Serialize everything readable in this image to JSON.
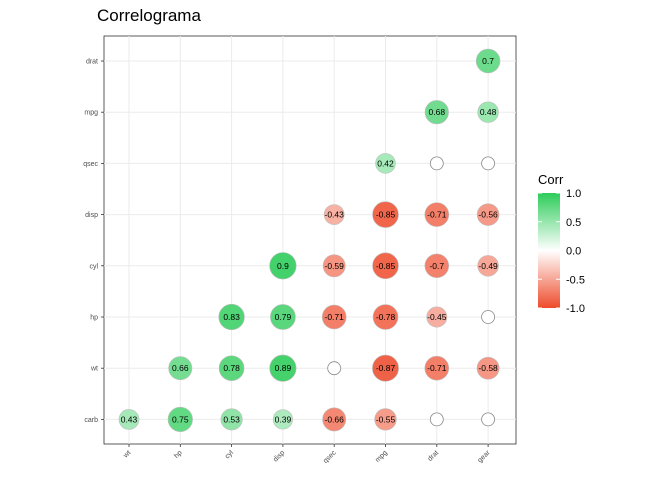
{
  "chart_data": {
    "type": "heatmap",
    "title": "Correlograma",
    "xlabel": "",
    "ylabel": "",
    "x_categories": [
      "wt",
      "hp",
      "cyl",
      "disp",
      "qsec",
      "mpg",
      "drat",
      "gear"
    ],
    "y_categories": [
      "carb",
      "wt",
      "hp",
      "cyl",
      "disp",
      "qsec",
      "mpg",
      "drat"
    ],
    "cells": [
      {
        "x": "gear",
        "y": "drat",
        "value": 0.7,
        "label": "0.7"
      },
      {
        "x": "drat",
        "y": "mpg",
        "value": 0.68,
        "label": "0.68"
      },
      {
        "x": "gear",
        "y": "mpg",
        "value": 0.48,
        "label": "0.48"
      },
      {
        "x": "mpg",
        "y": "qsec",
        "value": 0.42,
        "label": "0.42"
      },
      {
        "x": "drat",
        "y": "qsec",
        "value": null,
        "label": ""
      },
      {
        "x": "gear",
        "y": "qsec",
        "value": null,
        "label": ""
      },
      {
        "x": "qsec",
        "y": "disp",
        "value": -0.43,
        "label": "-0.43"
      },
      {
        "x": "mpg",
        "y": "disp",
        "value": -0.85,
        "label": "-0.85"
      },
      {
        "x": "drat",
        "y": "disp",
        "value": -0.71,
        "label": "-0.71"
      },
      {
        "x": "gear",
        "y": "disp",
        "value": -0.56,
        "label": "-0.56"
      },
      {
        "x": "disp",
        "y": "cyl",
        "value": 0.9,
        "label": "0.9"
      },
      {
        "x": "qsec",
        "y": "cyl",
        "value": -0.59,
        "label": "-0.59"
      },
      {
        "x": "mpg",
        "y": "cyl",
        "value": -0.85,
        "label": "-0.85"
      },
      {
        "x": "drat",
        "y": "cyl",
        "value": -0.7,
        "label": "-0.7"
      },
      {
        "x": "gear",
        "y": "cyl",
        "value": -0.49,
        "label": "-0.49"
      },
      {
        "x": "cyl",
        "y": "hp",
        "value": 0.83,
        "label": "0.83"
      },
      {
        "x": "disp",
        "y": "hp",
        "value": 0.79,
        "label": "0.79"
      },
      {
        "x": "qsec",
        "y": "hp",
        "value": -0.71,
        "label": "-0.71"
      },
      {
        "x": "mpg",
        "y": "hp",
        "value": -0.78,
        "label": "-0.78"
      },
      {
        "x": "drat",
        "y": "hp",
        "value": -0.45,
        "label": "-0.45"
      },
      {
        "x": "gear",
        "y": "hp",
        "value": null,
        "label": ""
      },
      {
        "x": "hp",
        "y": "wt",
        "value": 0.66,
        "label": "0.66"
      },
      {
        "x": "cyl",
        "y": "wt",
        "value": 0.78,
        "label": "0.78"
      },
      {
        "x": "disp",
        "y": "wt",
        "value": 0.89,
        "label": "0.89"
      },
      {
        "x": "qsec",
        "y": "wt",
        "value": null,
        "label": ""
      },
      {
        "x": "mpg",
        "y": "wt",
        "value": -0.87,
        "label": "-0.87"
      },
      {
        "x": "drat",
        "y": "wt",
        "value": -0.71,
        "label": "-0.71"
      },
      {
        "x": "gear",
        "y": "wt",
        "value": -0.58,
        "label": "-0.58"
      },
      {
        "x": "wt",
        "y": "carb",
        "value": 0.43,
        "label": "0.43"
      },
      {
        "x": "hp",
        "y": "carb",
        "value": 0.75,
        "label": "0.75"
      },
      {
        "x": "cyl",
        "y": "carb",
        "value": 0.53,
        "label": "0.53"
      },
      {
        "x": "disp",
        "y": "carb",
        "value": 0.39,
        "label": "0.39"
      },
      {
        "x": "qsec",
        "y": "carb",
        "value": -0.66,
        "label": "-0.66"
      },
      {
        "x": "mpg",
        "y": "carb",
        "value": -0.55,
        "label": "-0.55"
      },
      {
        "x": "drat",
        "y": "carb",
        "value": null,
        "label": ""
      },
      {
        "x": "gear",
        "y": "carb",
        "value": null,
        "label": ""
      }
    ],
    "legend": {
      "title": "Corr",
      "position": "right",
      "ticks": [
        1.0,
        0.5,
        0.0,
        -0.5,
        -1.0
      ],
      "tick_labels": [
        "1.0",
        "0.5",
        "0.0",
        "-0.5",
        "-1.0"
      ],
      "colors": {
        "high": "#2ECC5A",
        "mid": "#FFFFFF",
        "low": "#EE4B2B"
      }
    },
    "grid": true,
    "color_scale": [
      -1,
      1
    ]
  }
}
